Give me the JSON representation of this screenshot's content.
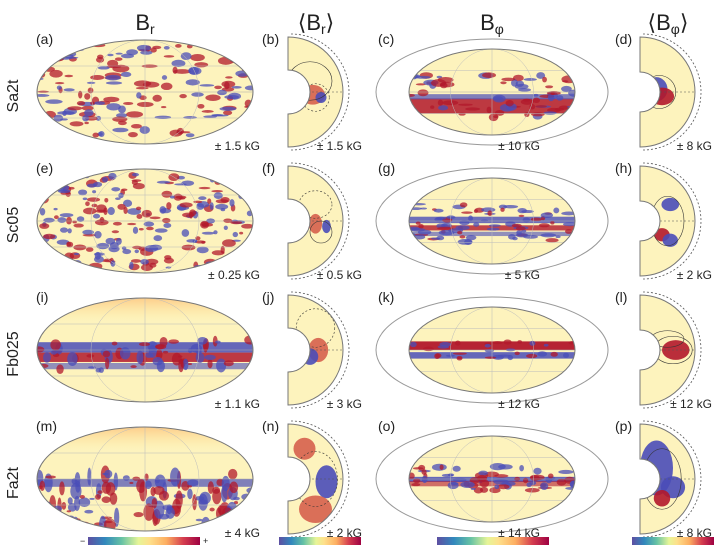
{
  "header": {
    "col1": "B",
    "col1_sub": "r",
    "col2_open": "⟨",
    "col2": "B",
    "col2_sub": "r",
    "col2_close": "⟩",
    "col3": "B",
    "col3_sub": "φ",
    "col4_open": "⟨",
    "col4": "B",
    "col4_sub": "φ",
    "col4_close": "⟩"
  },
  "rows": [
    {
      "name": "Sa2t",
      "labels": [
        "(a)",
        "(b)",
        "(c)",
        "(d)"
      ],
      "scales": [
        "± 1.5 kG",
        "± 1.5 kG",
        "± 10 kG",
        "± 8 kG"
      ]
    },
    {
      "name": "Sc05",
      "labels": [
        "(e)",
        "(f)",
        "(g)",
        "(h)"
      ],
      "scales": [
        "± 0.25 kG",
        "± 0.5 kG",
        "± 5 kG",
        "± 2 kG"
      ]
    },
    {
      "name": "Fb025",
      "labels": [
        "(i)",
        "(j)",
        "(k)",
        "(l)"
      ],
      "scales": [
        "± 1.1 kG",
        "± 3 kG",
        "± 12 kG",
        "± 12 kG"
      ]
    },
    {
      "name": "Fa2t",
      "labels": [
        "(m)",
        "(n)",
        "(o)",
        "(p)"
      ],
      "scales": [
        "± 4 kG",
        "± 2 kG",
        "± 14 kG",
        "± 8 kG"
      ]
    }
  ],
  "colorbar": {
    "minus": "−",
    "plus": "+"
  },
  "colors": {
    "positive": "#a50026",
    "negative": "#3b4cc0",
    "neutral": "#fdf5c0",
    "frame": "#888888"
  }
}
